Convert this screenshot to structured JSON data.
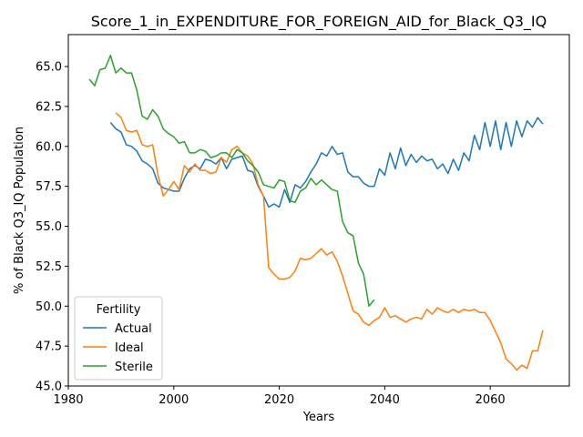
{
  "chart_data": {
    "type": "line",
    "title": "Score_1_in_EXPENDITURE_FOR_FOREIGN_AID_for_Black_Q3_IQ",
    "xlabel": "Years",
    "ylabel": "% of Black Q3_IQ Population",
    "xlim": [
      1980,
      2075
    ],
    "ylim": [
      45.0,
      67.0
    ],
    "xticks": [
      1980,
      2000,
      2020,
      2040,
      2060
    ],
    "yticks": [
      45.0,
      47.5,
      50.0,
      52.5,
      55.0,
      57.5,
      60.0,
      62.5,
      65.0
    ],
    "grid": false,
    "legend": {
      "title": "Fertility",
      "placement": "bottom-left"
    },
    "series": [
      {
        "name": "Actual",
        "color": "#1f77b4",
        "x": [
          1988,
          1989,
          1990,
          1991,
          1992,
          1993,
          1994,
          1995,
          1996,
          1997,
          1998,
          1999,
          2000,
          2001,
          2002,
          2003,
          2004,
          2005,
          2006,
          2007,
          2008,
          2009,
          2010,
          2011,
          2012,
          2013,
          2014,
          2015,
          2016,
          2017,
          2018,
          2019,
          2020,
          2021,
          2022,
          2023,
          2024,
          2025,
          2026,
          2027,
          2028,
          2029,
          2030,
          2031,
          2032,
          2033,
          2034,
          2035,
          2036,
          2037,
          2038,
          2039,
          2040,
          2041,
          2042,
          2043,
          2044,
          2045,
          2046,
          2047,
          2048,
          2049,
          2050,
          2051,
          2052,
          2053,
          2054,
          2055,
          2056,
          2057,
          2058,
          2059,
          2060,
          2061,
          2062,
          2063,
          2064,
          2065,
          2066,
          2067,
          2068,
          2069,
          2070
        ],
        "values": [
          61.5,
          61.1,
          60.9,
          60.1,
          60.0,
          59.7,
          59.1,
          58.9,
          58.6,
          57.7,
          57.4,
          57.3,
          57.2,
          57.2,
          58.0,
          58.6,
          58.8,
          58.6,
          59.2,
          59.1,
          58.9,
          59.3,
          58.6,
          59.2,
          59.3,
          59.4,
          58.5,
          58.4,
          57.5,
          56.9,
          56.2,
          56.4,
          56.2,
          57.3,
          56.5,
          57.6,
          57.4,
          57.8,
          58.4,
          58.9,
          59.6,
          59.4,
          60.0,
          59.5,
          59.6,
          58.4,
          58.1,
          58.1,
          57.7,
          57.5,
          57.5,
          58.6,
          58.2,
          59.6,
          58.6,
          59.9,
          58.8,
          59.5,
          59.0,
          59.4,
          59.1,
          59.2,
          58.6,
          58.9,
          58.3,
          59.2,
          58.5,
          59.6,
          59.1,
          60.7,
          59.8,
          61.5,
          60.0,
          61.6,
          59.8,
          61.5,
          60.0,
          61.6,
          60.6,
          61.6,
          61.2,
          61.8,
          61.4
        ]
      },
      {
        "name": "Ideal",
        "color": "#ff7f0e",
        "x": [
          1989,
          1990,
          1991,
          1992,
          1993,
          1994,
          1995,
          1996,
          1997,
          1998,
          1999,
          2000,
          2001,
          2002,
          2003,
          2004,
          2005,
          2006,
          2007,
          2008,
          2009,
          2010,
          2011,
          2012,
          2013,
          2014,
          2015,
          2016,
          2017,
          2018,
          2019,
          2020,
          2021,
          2022,
          2023,
          2024,
          2025,
          2026,
          2027,
          2028,
          2029,
          2030,
          2031,
          2032,
          2033,
          2034,
          2035,
          2036,
          2037,
          2038,
          2039,
          2040,
          2041,
          2042,
          2043,
          2044,
          2045,
          2046,
          2047,
          2048,
          2049,
          2050,
          2051,
          2052,
          2053,
          2054,
          2055,
          2056,
          2057,
          2058,
          2059,
          2060,
          2061,
          2062,
          2063,
          2064,
          2065,
          2066,
          2067,
          2068,
          2069,
          2070
        ],
        "values": [
          62.1,
          61.8,
          61.0,
          60.9,
          61.0,
          60.1,
          60.0,
          60.1,
          58.2,
          56.9,
          57.3,
          57.8,
          57.3,
          58.8,
          58.4,
          58.9,
          58.5,
          58.5,
          58.3,
          58.4,
          59.3,
          59.0,
          59.8,
          60.0,
          59.6,
          59.4,
          58.9,
          57.6,
          56.9,
          52.4,
          52.0,
          51.7,
          51.7,
          51.8,
          52.2,
          53.0,
          52.9,
          53.0,
          53.3,
          53.6,
          53.2,
          53.4,
          52.8,
          51.9,
          50.8,
          49.7,
          49.5,
          49.0,
          48.8,
          49.1,
          49.3,
          49.9,
          49.3,
          49.4,
          49.2,
          49.0,
          49.2,
          49.3,
          49.2,
          49.8,
          49.5,
          49.9,
          49.7,
          49.6,
          49.8,
          49.6,
          49.8,
          49.7,
          49.8,
          49.6,
          49.6,
          49.1,
          48.4,
          47.7,
          46.7,
          46.4,
          46.0,
          46.3,
          46.1,
          47.2,
          47.2,
          48.5
        ]
      },
      {
        "name": "Sterile",
        "color": "#2ca02c",
        "x": [
          1984,
          1985,
          1986,
          1987,
          1988,
          1989,
          1990,
          1991,
          1992,
          1993,
          1994,
          1995,
          1996,
          1997,
          1998,
          1999,
          2000,
          2001,
          2002,
          2003,
          2004,
          2005,
          2006,
          2007,
          2008,
          2009,
          2010,
          2011,
          2012,
          2013,
          2014,
          2015,
          2016,
          2017,
          2018,
          2019,
          2020,
          2021,
          2022,
          2023,
          2024,
          2025,
          2026,
          2027,
          2028,
          2029,
          2030,
          2031,
          2032,
          2033,
          2034,
          2035,
          2036,
          2037,
          2038
        ],
        "values": [
          64.2,
          63.8,
          64.8,
          64.9,
          65.7,
          64.6,
          64.9,
          64.6,
          64.6,
          63.5,
          61.9,
          61.7,
          62.3,
          61.9,
          61.1,
          60.8,
          60.6,
          60.2,
          60.3,
          59.6,
          59.6,
          59.8,
          59.7,
          59.3,
          59.4,
          59.6,
          59.6,
          59.3,
          59.8,
          59.6,
          59.1,
          58.8,
          58.4,
          57.6,
          57.5,
          57.4,
          57.9,
          57.8,
          56.6,
          56.5,
          57.2,
          57.4,
          58.0,
          57.6,
          57.9,
          57.6,
          57.3,
          57.2,
          55.3,
          54.6,
          54.4,
          52.7,
          52.0,
          50.0,
          50.4
        ]
      }
    ]
  }
}
